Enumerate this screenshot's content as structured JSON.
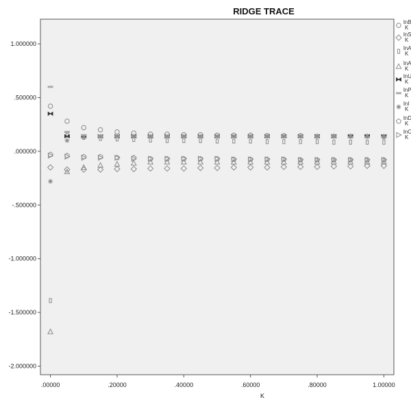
{
  "chart_data": {
    "type": "scatter",
    "title": "RIDGE TRACE",
    "xlabel": "K",
    "ylabel": "",
    "xlim": [
      -0.03,
      1.03
    ],
    "ylim": [
      -2.08,
      1.23
    ],
    "x_ticks": [
      ".00000",
      ".20000",
      ".40000",
      ".60000",
      ".80000",
      "1.00000"
    ],
    "x_tick_values": [
      0,
      0.2,
      0.4,
      0.6,
      0.8,
      1.0
    ],
    "y_ticks": [
      "1.000000",
      ".500000",
      ".000000",
      "-.500000",
      "-1.000000",
      "-1.500000",
      "-2.000000"
    ],
    "y_tick_values": [
      1,
      0.5,
      0,
      -0.5,
      -1,
      -1.5,
      -2
    ],
    "grid": false,
    "legend_position": "right",
    "x": [
      0,
      0.05,
      0.1,
      0.15,
      0.2,
      0.25,
      0.3,
      0.35,
      0.4,
      0.45,
      0.5,
      0.55,
      0.6,
      0.65,
      0.7,
      0.75,
      0.8,
      0.85,
      0.9,
      0.95,
      1.0
    ],
    "series": [
      {
        "name": "lnB K",
        "marker": "circle",
        "values": [
          0.42,
          0.28,
          0.22,
          0.2,
          0.18,
          0.17,
          0.16,
          0.16,
          0.155,
          0.155,
          0.15,
          0.15,
          0.15,
          0.145,
          0.145,
          0.145,
          0.14,
          0.14,
          0.14,
          0.14,
          0.135
        ]
      },
      {
        "name": "lnS K",
        "marker": "diamond",
        "values": [
          -0.15,
          -0.17,
          -0.17,
          -0.17,
          -0.165,
          -0.165,
          -0.16,
          -0.16,
          -0.16,
          -0.155,
          -0.155,
          -0.15,
          -0.15,
          -0.15,
          -0.145,
          -0.145,
          -0.145,
          -0.14,
          -0.14,
          -0.135,
          -0.135
        ]
      },
      {
        "name": "lnA K",
        "marker": "rect",
        "values": [
          -1.39,
          0.15,
          0.13,
          0.12,
          0.115,
          0.11,
          0.105,
          0.1,
          0.1,
          0.1,
          0.095,
          0.095,
          0.095,
          0.09,
          0.09,
          0.09,
          0.09,
          0.085,
          0.085,
          0.085,
          0.085
        ]
      },
      {
        "name": "lnA K",
        "marker": "triangle-up",
        "values": [
          -1.68,
          -0.19,
          -0.15,
          -0.13,
          -0.12,
          -0.11,
          -0.1,
          -0.1,
          -0.1,
          -0.1,
          -0.1,
          -0.1,
          -0.1,
          -0.1,
          -0.1,
          -0.1,
          -0.1,
          -0.1,
          -0.1,
          -0.1,
          -0.1
        ]
      },
      {
        "name": "lnU K",
        "marker": "bowtie",
        "values": [
          0.35,
          0.14,
          0.14,
          0.14,
          0.14,
          0.14,
          0.14,
          0.14,
          0.14,
          0.14,
          0.14,
          0.14,
          0.14,
          0.14,
          0.14,
          0.14,
          0.14,
          0.14,
          0.14,
          0.14,
          0.14
        ]
      },
      {
        "name": "lnP K",
        "marker": "bar",
        "values": [
          0.6,
          0.18,
          0.15,
          0.14,
          0.14,
          0.14,
          0.14,
          0.14,
          0.14,
          0.14,
          0.14,
          0.14,
          0.14,
          0.14,
          0.14,
          0.14,
          0.14,
          0.14,
          0.13,
          0.13,
          0.13
        ]
      },
      {
        "name": "lnI K",
        "marker": "sun",
        "values": [
          -0.28,
          0.1,
          0.13,
          0.14,
          0.14,
          0.14,
          0.14,
          0.14,
          0.14,
          0.14,
          0.14,
          0.14,
          0.14,
          0.14,
          0.14,
          0.14,
          0.14,
          0.14,
          0.14,
          0.14,
          0.14
        ]
      },
      {
        "name": "lnD K",
        "marker": "pentagon",
        "values": [
          -0.03,
          -0.04,
          -0.05,
          -0.05,
          -0.06,
          -0.06,
          -0.07,
          -0.07,
          -0.07,
          -0.07,
          -0.07,
          -0.075,
          -0.075,
          -0.075,
          -0.075,
          -0.08,
          -0.08,
          -0.08,
          -0.08,
          -0.08,
          -0.08
        ]
      },
      {
        "name": "lnC K",
        "marker": "triangle-right",
        "values": [
          -0.04,
          -0.05,
          -0.06,
          -0.06,
          -0.06,
          -0.07,
          -0.07,
          -0.07,
          -0.07,
          -0.07,
          -0.07,
          -0.075,
          -0.075,
          -0.075,
          -0.075,
          -0.08,
          -0.08,
          -0.08,
          -0.08,
          -0.08,
          -0.08
        ]
      }
    ],
    "legend_labels": [
      [
        "lnB",
        "K"
      ],
      [
        "lnS",
        "K"
      ],
      [
        "lnA",
        "K"
      ],
      [
        "lnA",
        "K"
      ],
      [
        "lnU",
        "K"
      ],
      [
        "lnP",
        "K"
      ],
      [
        "lnI",
        "K"
      ],
      [
        "lnD",
        "K"
      ],
      [
        "lnC",
        "K"
      ]
    ],
    "colors": {
      "background": "#f0f0f0",
      "marker": "#8a8a8a",
      "frame": "#555555"
    }
  }
}
